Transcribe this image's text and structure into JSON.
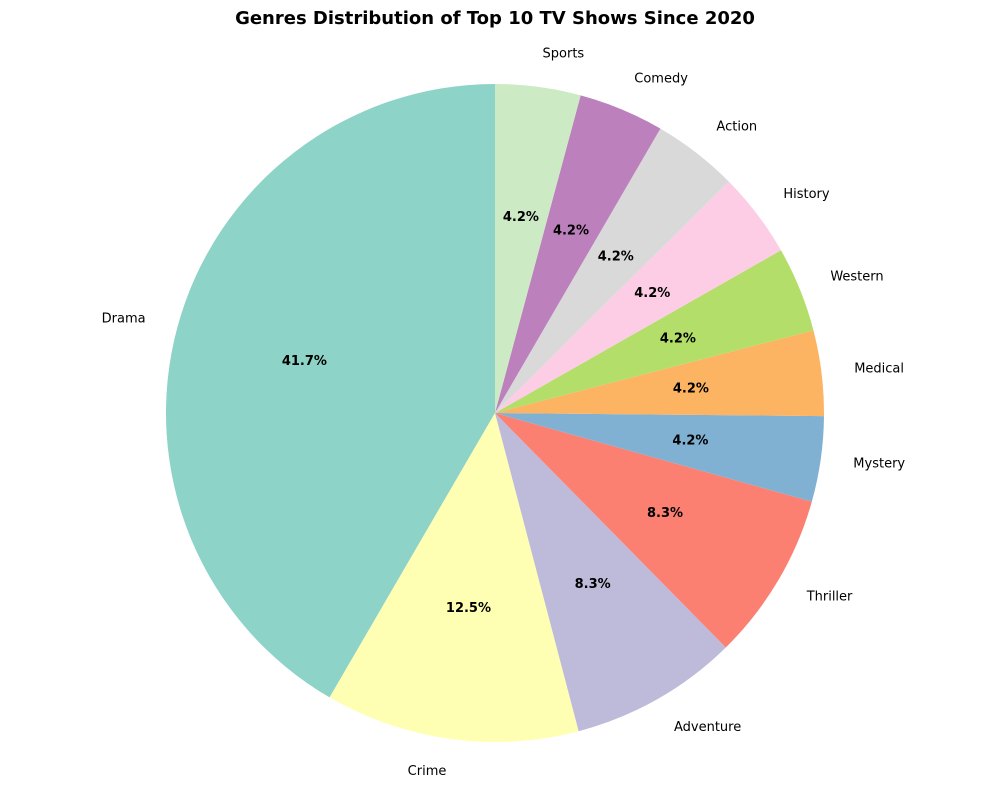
{
  "chart_data": {
    "type": "pie",
    "title": "Genres Distribution of Top 10 TV Shows Since 2020",
    "start_angle_deg": 90,
    "direction": "counterclockwise",
    "slices": [
      {
        "label": "Drama",
        "value": 41.7,
        "pct_label": "41.7%",
        "color": "#8dd3c7"
      },
      {
        "label": "Crime",
        "value": 12.5,
        "pct_label": "12.5%",
        "color": "#ffffb3"
      },
      {
        "label": "Adventure",
        "value": 8.3,
        "pct_label": "8.3%",
        "color": "#bebada"
      },
      {
        "label": "Thriller",
        "value": 8.3,
        "pct_label": "8.3%",
        "color": "#fb8072"
      },
      {
        "label": "Mystery",
        "value": 4.2,
        "pct_label": "4.2%",
        "color": "#80b1d3"
      },
      {
        "label": "Medical",
        "value": 4.2,
        "pct_label": "4.2%",
        "color": "#fdb462"
      },
      {
        "label": "Western",
        "value": 4.2,
        "pct_label": "4.2%",
        "color": "#b3de69"
      },
      {
        "label": "History",
        "value": 4.2,
        "pct_label": "4.2%",
        "color": "#fccde5"
      },
      {
        "label": "Action",
        "value": 4.2,
        "pct_label": "4.2%",
        "color": "#d9d9d9"
      },
      {
        "label": "Comedy",
        "value": 4.2,
        "pct_label": "4.2%",
        "color": "#bc80bd"
      },
      {
        "label": "Sports",
        "value": 4.2,
        "pct_label": "4.2%",
        "color": "#ccebc5"
      }
    ]
  }
}
